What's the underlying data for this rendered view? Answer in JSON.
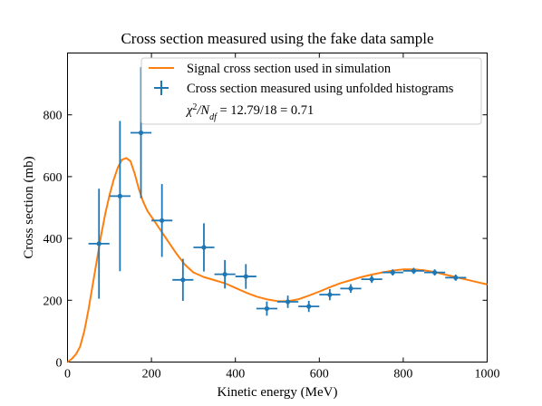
{
  "chart_data": {
    "type": "scatter",
    "title": "Cross section measured using the fake data sample",
    "xlabel": "Kinetic energy (MeV)",
    "ylabel": "Cross section (mb)",
    "xlim": [
      0,
      1000
    ],
    "ylim": [
      0,
      1000
    ],
    "xticks": [
      0,
      200,
      400,
      600,
      800,
      1000
    ],
    "yticks": [
      0,
      200,
      400,
      600,
      800
    ],
    "grid": false,
    "legend_position": "top-right",
    "annotation": {
      "chi": "χ",
      "chi_sup": "2",
      "slash_n": "/N",
      "n_sub": "df",
      "value": " = 12.79/18 = 0.71"
    },
    "series": [
      {
        "name": "Signal cross section used in simulation",
        "kind": "line",
        "color": "#ff7f0e",
        "x": [
          0,
          10,
          20,
          30,
          40,
          50,
          60,
          70,
          80,
          90,
          100,
          110,
          120,
          130,
          140,
          150,
          160,
          170,
          180,
          190,
          200,
          220,
          240,
          260,
          280,
          300,
          325,
          350,
          375,
          400,
          425,
          450,
          475,
          500,
          525,
          550,
          575,
          600,
          625,
          650,
          675,
          700,
          725,
          750,
          775,
          800,
          825,
          850,
          875,
          900,
          925,
          950,
          975,
          1000
        ],
        "y": [
          0,
          10,
          25,
          50,
          100,
          170,
          250,
          330,
          410,
          480,
          540,
          590,
          630,
          655,
          660,
          650,
          610,
          560,
          520,
          490,
          470,
          430,
          390,
          350,
          315,
          290,
          275,
          265,
          255,
          240,
          225,
          212,
          203,
          197,
          197,
          203,
          215,
          228,
          242,
          255,
          265,
          275,
          283,
          290,
          296,
          300,
          300,
          297,
          291,
          283,
          275,
          267,
          259,
          251
        ]
      },
      {
        "name": "Cross section measured using unfolded histograms",
        "kind": "errorbar",
        "color": "#1f77b4",
        "x": [
          75,
          125,
          175,
          225,
          275,
          325,
          375,
          425,
          475,
          525,
          575,
          625,
          675,
          725,
          775,
          825,
          875,
          925
        ],
        "xerr": [
          25,
          25,
          25,
          25,
          25,
          25,
          25,
          25,
          25,
          25,
          25,
          25,
          25,
          25,
          25,
          25,
          25,
          25
        ],
        "y": [
          383,
          537,
          742,
          458,
          266,
          371,
          284,
          277,
          173,
          195,
          180,
          218,
          238,
          268,
          290,
          295,
          290,
          273
        ],
        "yerr_low": [
          178,
          243,
          212,
          118,
          68,
          78,
          46,
          40,
          23,
          20,
          18,
          18,
          14,
          12,
          10,
          10,
          10,
          10
        ],
        "yerr_high": [
          178,
          243,
          212,
          118,
          68,
          78,
          46,
          40,
          23,
          20,
          18,
          18,
          14,
          12,
          10,
          10,
          10,
          10
        ]
      }
    ]
  }
}
